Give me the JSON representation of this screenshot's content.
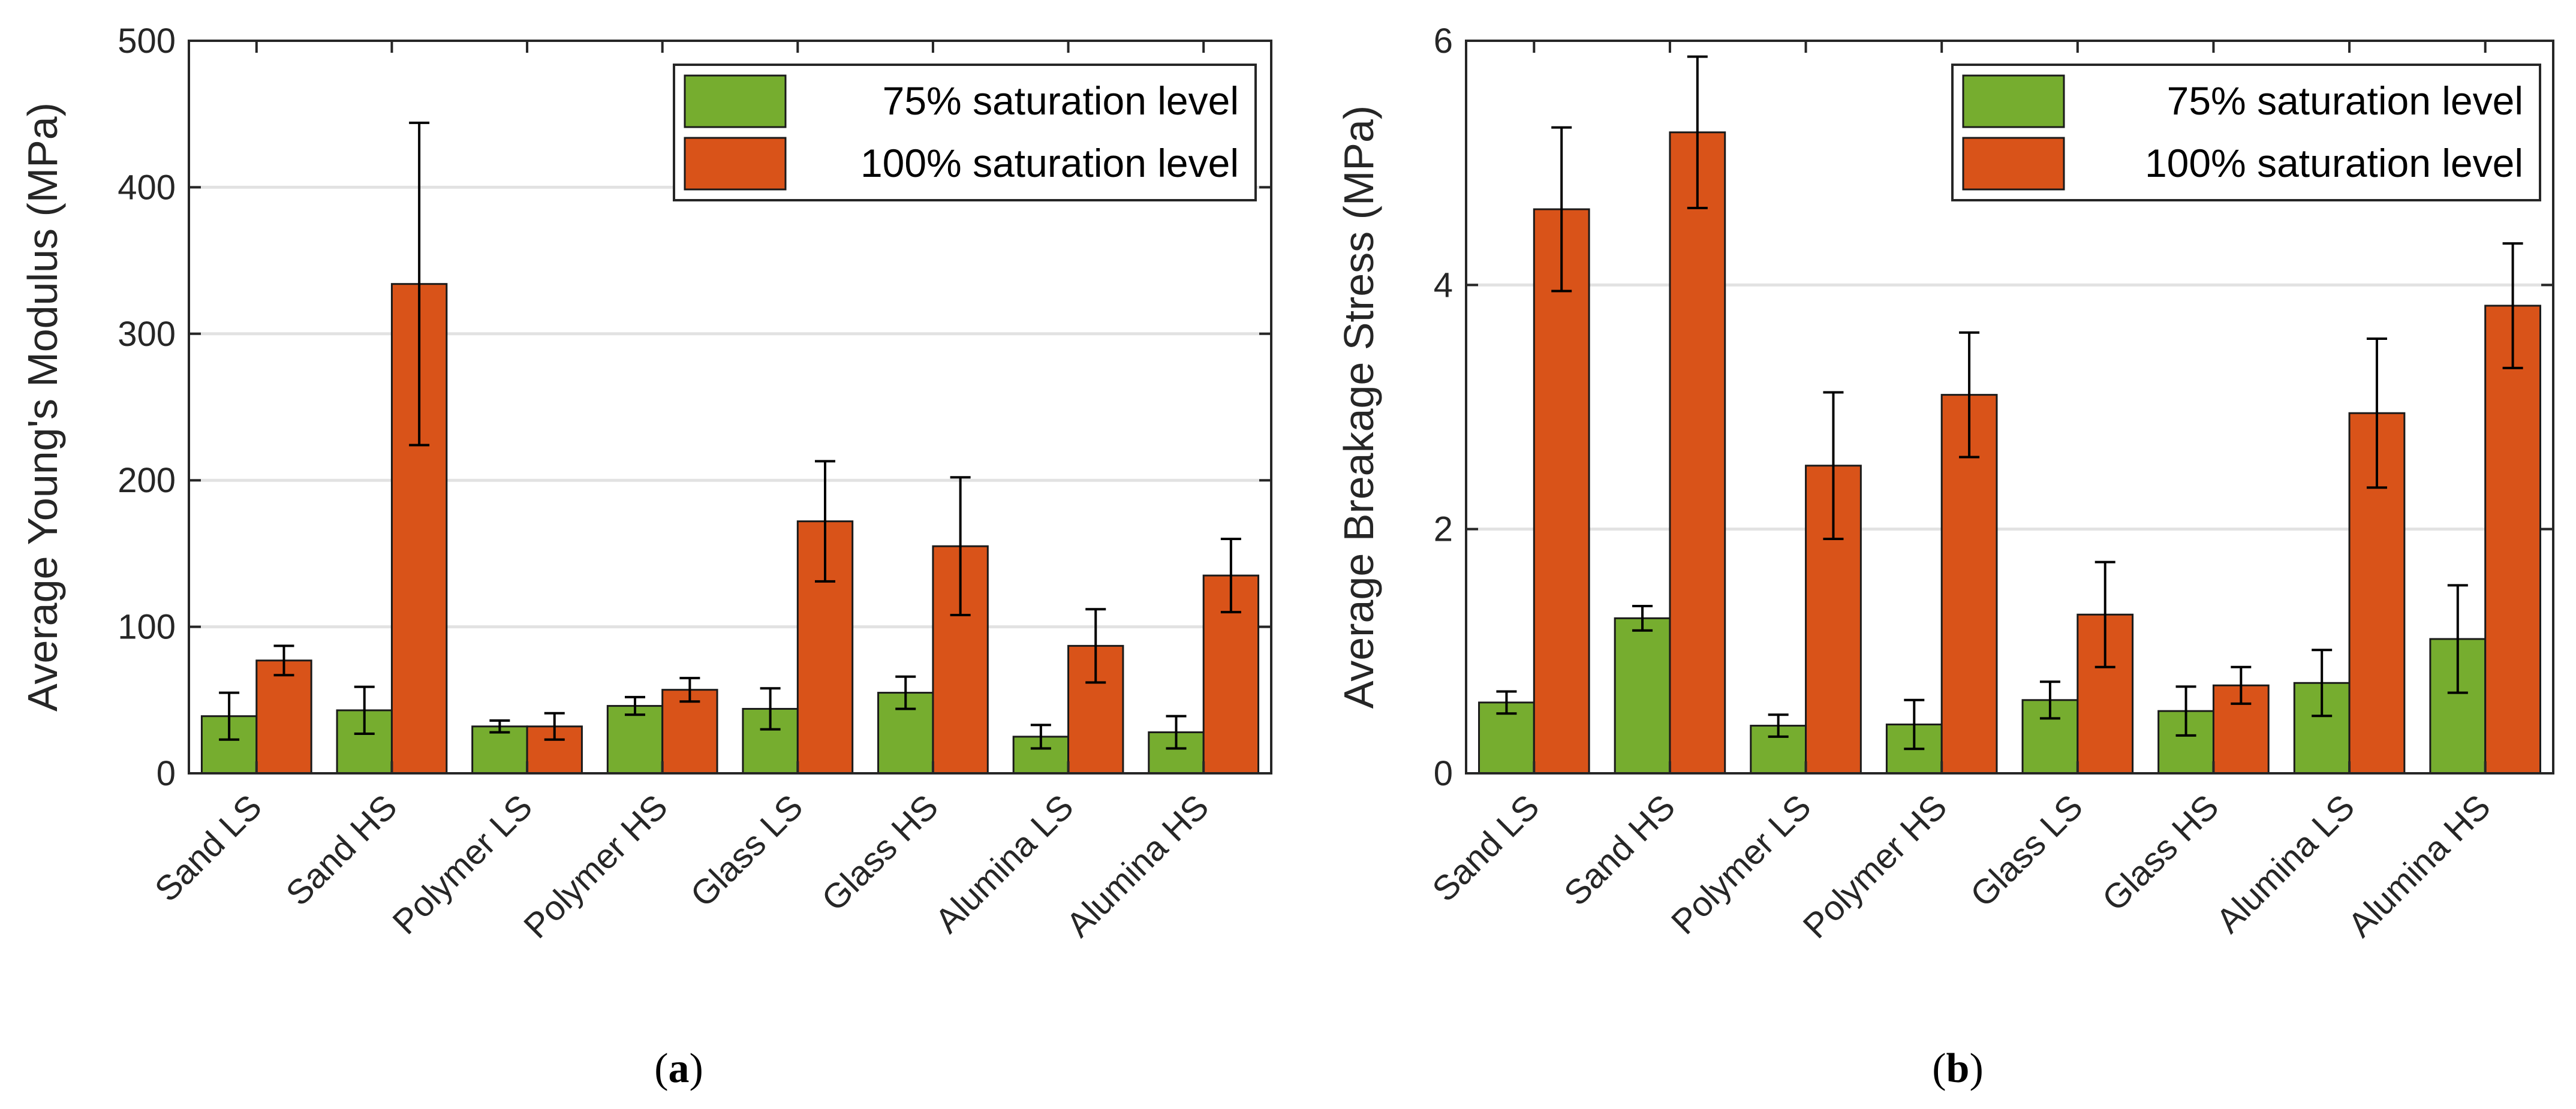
{
  "colors": {
    "series_75": "#76ad2f",
    "series_100": "#d95319",
    "gridline": "#e2e2e2",
    "axis": "#262626",
    "error_bar": "#000000"
  },
  "chart_data": [
    {
      "type": "bar",
      "panel_label": "a",
      "xlabel": "",
      "ylabel": "Average Young's Modulus (MPa)",
      "ylim": [
        0,
        500
      ],
      "yticks": [
        0,
        100,
        200,
        300,
        400,
        500
      ],
      "grid": true,
      "legend_position": "top-right",
      "categories": [
        "Sand LS",
        "Sand HS",
        "Polymer LS",
        "Polymer HS",
        "Glass LS",
        "Glass HS",
        "Alumina LS",
        "Alumina HS"
      ],
      "series": [
        {
          "name": "75% saturation level",
          "color": "#76ad2f",
          "values": [
            39,
            43,
            32,
            46,
            44,
            55,
            25,
            28
          ],
          "errors": [
            16,
            16,
            4,
            6,
            14,
            11,
            8,
            11
          ]
        },
        {
          "name": "100% saturation level",
          "color": "#d95319",
          "values": [
            77,
            334,
            32,
            57,
            172,
            155,
            87,
            135
          ],
          "errors": [
            10,
            110,
            9,
            8,
            41,
            47,
            25,
            25
          ]
        }
      ]
    },
    {
      "type": "bar",
      "panel_label": "b",
      "xlabel": "",
      "ylabel": "Average Breakage Stress (MPa)",
      "ylim": [
        0,
        6
      ],
      "yticks": [
        0,
        2,
        4,
        6
      ],
      "grid": true,
      "legend_position": "top-right",
      "categories": [
        "Sand LS",
        "Sand HS",
        "Polymer LS",
        "Polymer HS",
        "Glass LS",
        "Glass HS",
        "Alumina LS",
        "Alumina HS"
      ],
      "series": [
        {
          "name": "75% saturation level",
          "color": "#76ad2f",
          "values": [
            0.58,
            1.27,
            0.39,
            0.4,
            0.6,
            0.51,
            0.74,
            1.1
          ],
          "errors": [
            0.09,
            0.1,
            0.09,
            0.2,
            0.15,
            0.2,
            0.27,
            0.44
          ]
        },
        {
          "name": "100% saturation level",
          "color": "#d95319",
          "values": [
            4.62,
            5.25,
            2.52,
            3.1,
            1.3,
            0.72,
            2.95,
            3.83
          ],
          "errors": [
            0.67,
            0.62,
            0.6,
            0.51,
            0.43,
            0.15,
            0.61,
            0.51
          ]
        }
      ]
    }
  ]
}
